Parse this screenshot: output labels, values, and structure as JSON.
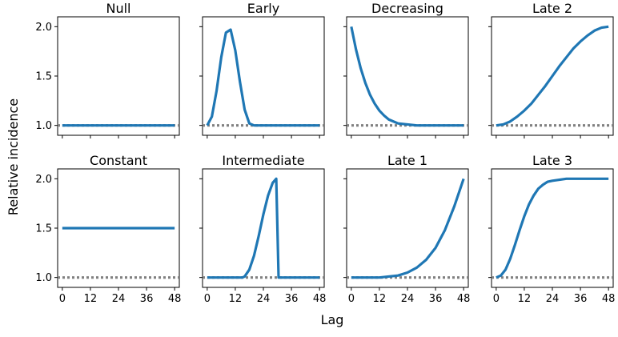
{
  "figure": {
    "ylabel": "Relative incidence",
    "xlabel": "Lag",
    "shared_x_ticks": [
      "0",
      "12",
      "24",
      "36",
      "48"
    ],
    "shared_y_ticks": [
      "1.0",
      "1.5",
      "2.0"
    ],
    "line_color": "#1f77b4",
    "reference_color": "#808080"
  },
  "chart_data": [
    {
      "type": "line",
      "title": "Null",
      "xlim": [
        -2,
        50
      ],
      "ylim": [
        0.9,
        2.1
      ],
      "reference": 1.0,
      "x": [
        0,
        48
      ],
      "values": [
        1.0,
        1.0
      ]
    },
    {
      "type": "line",
      "title": "Early",
      "xlim": [
        -2,
        50
      ],
      "ylim": [
        0.9,
        2.1
      ],
      "reference": 1.0,
      "x": [
        0,
        2,
        4,
        6,
        8,
        10,
        12,
        14,
        16,
        18,
        20,
        22,
        24,
        30,
        36,
        42,
        48
      ],
      "values": [
        1.0,
        1.09,
        1.35,
        1.69,
        1.94,
        1.97,
        1.76,
        1.44,
        1.16,
        1.02,
        1.0,
        1.0,
        1.0,
        1.0,
        1.0,
        1.0,
        1.0
      ]
    },
    {
      "type": "line",
      "title": "Decreasing",
      "xlim": [
        -2,
        50
      ],
      "ylim": [
        0.9,
        2.1
      ],
      "reference": 1.0,
      "x": [
        0,
        2,
        4,
        6,
        8,
        10,
        12,
        14,
        16,
        18,
        20,
        24,
        28,
        32,
        36,
        42,
        48
      ],
      "values": [
        2.0,
        1.77,
        1.58,
        1.43,
        1.31,
        1.22,
        1.15,
        1.1,
        1.06,
        1.04,
        1.02,
        1.01,
        1.0,
        1.0,
        1.0,
        1.0,
        1.0
      ]
    },
    {
      "type": "line",
      "title": "Late 2",
      "xlim": [
        -2,
        50
      ],
      "ylim": [
        0.9,
        2.1
      ],
      "reference": 1.0,
      "x": [
        0,
        3,
        6,
        9,
        12,
        15,
        18,
        21,
        24,
        27,
        30,
        33,
        36,
        39,
        42,
        45,
        48
      ],
      "values": [
        1.0,
        1.01,
        1.04,
        1.09,
        1.15,
        1.22,
        1.31,
        1.4,
        1.5,
        1.6,
        1.69,
        1.78,
        1.85,
        1.91,
        1.96,
        1.99,
        2.0
      ]
    },
    {
      "type": "line",
      "title": "Constant",
      "xlim": [
        -2,
        50
      ],
      "ylim": [
        0.9,
        2.1
      ],
      "reference": 1.0,
      "x": [
        0,
        48
      ],
      "values": [
        1.5,
        1.5
      ]
    },
    {
      "type": "line",
      "title": "Intermediate",
      "xlim": [
        -2,
        50
      ],
      "ylim": [
        0.9,
        2.1
      ],
      "reference": 1.0,
      "x": [
        0,
        15,
        16,
        18,
        20,
        22,
        24,
        26,
        28,
        29.5,
        30.5,
        36,
        42,
        48
      ],
      "values": [
        1.0,
        1.0,
        1.01,
        1.08,
        1.22,
        1.42,
        1.64,
        1.83,
        1.96,
        2.0,
        1.0,
        1.0,
        1.0,
        1.0
      ]
    },
    {
      "type": "line",
      "title": "Late 1",
      "xlim": [
        -2,
        50
      ],
      "ylim": [
        0.9,
        2.1
      ],
      "reference": 1.0,
      "x": [
        0,
        12,
        16,
        20,
        24,
        28,
        32,
        36,
        40,
        44,
        48
      ],
      "values": [
        1.0,
        1.0,
        1.01,
        1.02,
        1.05,
        1.1,
        1.18,
        1.3,
        1.48,
        1.72,
        2.0
      ]
    },
    {
      "type": "line",
      "title": "Late 3",
      "xlim": [
        -2,
        50
      ],
      "ylim": [
        0.9,
        2.1
      ],
      "reference": 1.0,
      "x": [
        0,
        2,
        4,
        6,
        8,
        10,
        12,
        14,
        16,
        18,
        20,
        22,
        24,
        27,
        30,
        33,
        36,
        42,
        48
      ],
      "values": [
        1.0,
        1.02,
        1.08,
        1.19,
        1.33,
        1.48,
        1.62,
        1.74,
        1.83,
        1.9,
        1.94,
        1.97,
        1.98,
        1.99,
        2.0,
        2.0,
        2.0,
        2.0,
        2.0
      ]
    }
  ]
}
